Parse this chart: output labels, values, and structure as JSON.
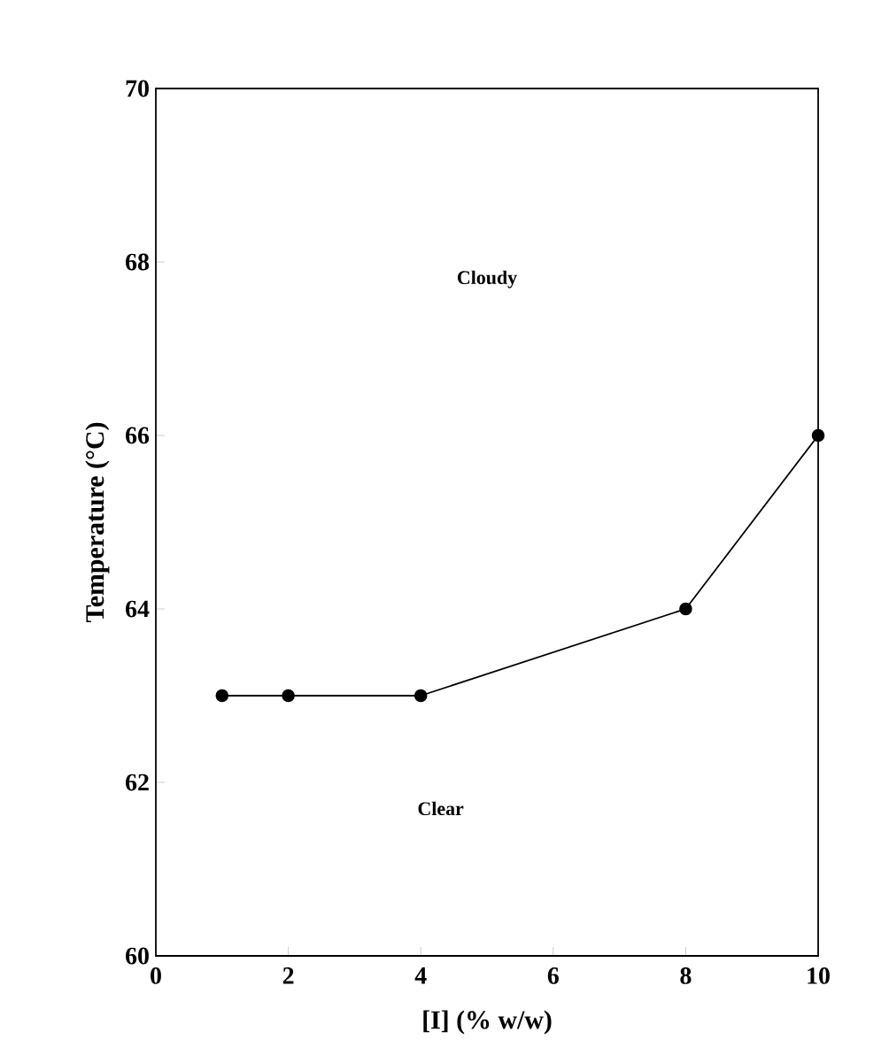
{
  "chart_data": {
    "type": "line",
    "xlabel": "[I] (% w/w)",
    "ylabel": "Temperature (°C)",
    "x": [
      1,
      2,
      4,
      8,
      10
    ],
    "series": [
      {
        "color": "#000000",
        "values": [
          63,
          63,
          63,
          64,
          66
        ]
      }
    ],
    "xlim": [
      0,
      10
    ],
    "xticks": [
      0,
      2,
      4,
      6,
      8,
      10
    ],
    "ylim": [
      60,
      70
    ],
    "yticks": [
      60,
      62,
      64,
      66,
      68,
      70
    ],
    "marker": "circle",
    "line_style": "solid",
    "grid": false,
    "annotations": [
      "Cloudy",
      "Clear"
    ]
  }
}
